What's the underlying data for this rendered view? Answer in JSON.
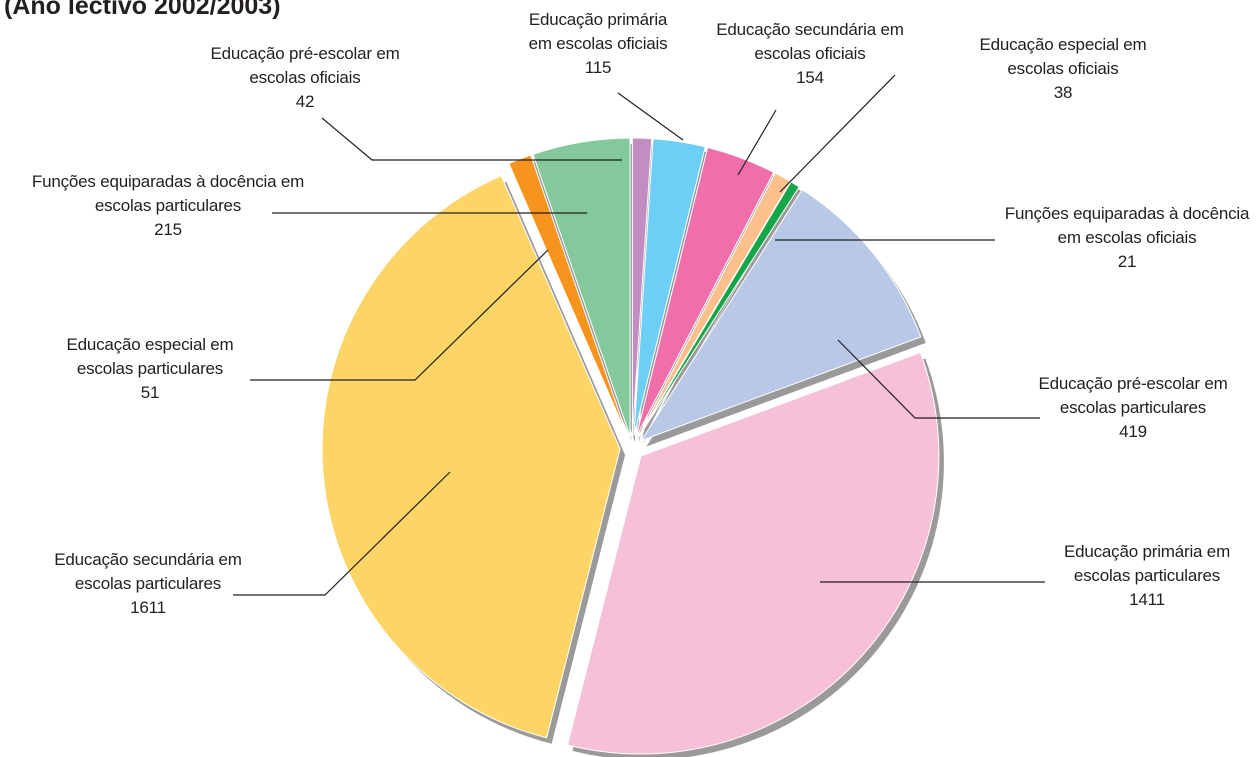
{
  "chart_data": {
    "type": "pie",
    "title": "(Ano lectivo 2002/2003)",
    "categories": [
      "Educação pré-escolar em escolas oficiais",
      "Educação primária em escolas oficiais",
      "Educação secundária em escolas oficiais",
      "Educação especial em escolas oficiais",
      "Funções equiparadas à docência em escolas oficiais",
      "Educação pré-escolar em escolas particulares",
      "Educação primária em escolas particulares",
      "Educação secundária em escolas particulares",
      "Educação especial em escolas particulares",
      "Funções equiparadas à docência em escolas particulares"
    ],
    "values": [
      42,
      115,
      154,
      38,
      21,
      419,
      1411,
      1611,
      51,
      215
    ],
    "colors": [
      "#c28dc1",
      "#6dcff6",
      "#f06eaa",
      "#fdc08a",
      "#16a64a",
      "#b9c8e6",
      "#f6c0d9",
      "#fdd466",
      "#f7941d",
      "#84c99b"
    ]
  }
}
